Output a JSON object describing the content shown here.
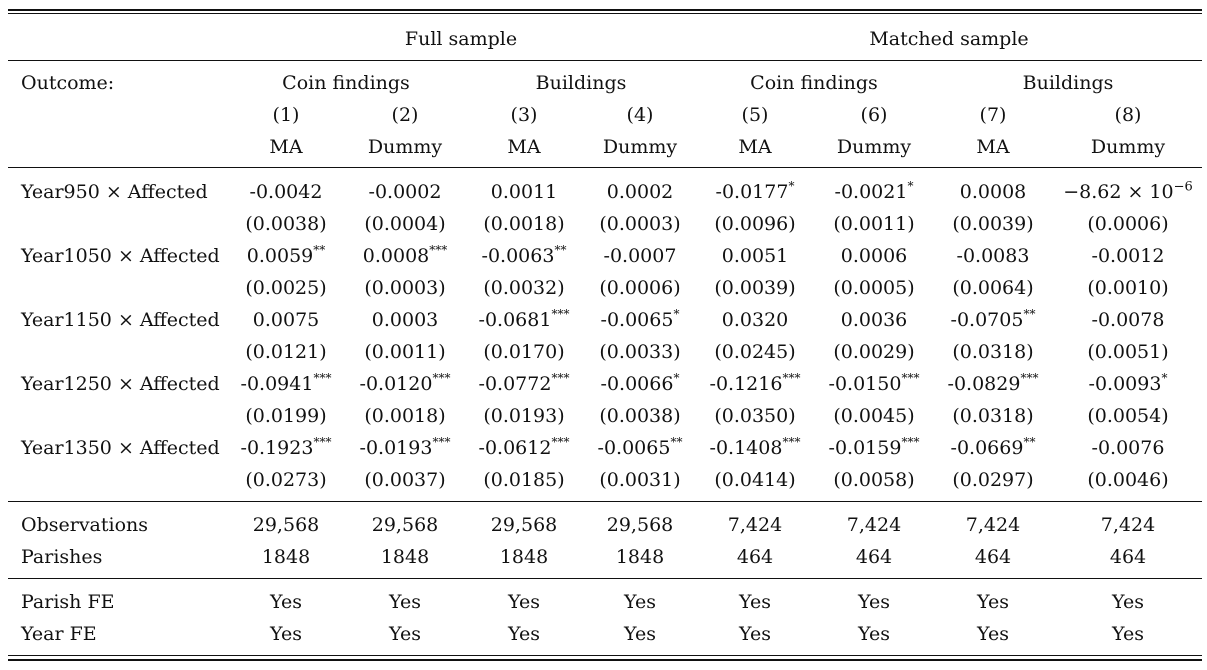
{
  "header": {
    "groups": [
      "Full sample",
      "Matched sample"
    ],
    "outcome_label": "Outcome:",
    "subgroups": [
      "Coin findings",
      "Buildings",
      "Coin findings",
      "Buildings"
    ],
    "col_numbers": [
      "(1)",
      "(2)",
      "(3)",
      "(4)",
      "(5)",
      "(6)",
      "(7)",
      "(8)"
    ],
    "col_types": [
      "MA",
      "Dummy",
      "MA",
      "Dummy",
      "MA",
      "Dummy",
      "MA",
      "Dummy"
    ]
  },
  "rows": [
    {
      "label": "Year950 × Affected",
      "coefs": [
        [
          "-0.0042",
          ""
        ],
        [
          "-0.0002",
          ""
        ],
        [
          "0.0011",
          ""
        ],
        [
          "0.0002",
          ""
        ],
        [
          "-0.0177",
          "*"
        ],
        [
          "-0.0021",
          "*"
        ],
        [
          "0.0008",
          ""
        ],
        [
          "−8.62 × 10",
          ""
        ]
      ],
      "last_exp": "−6",
      "ses": [
        "(0.0038)",
        "(0.0004)",
        "(0.0018)",
        "(0.0003)",
        "(0.0096)",
        "(0.0011)",
        "(0.0039)",
        "(0.0006)"
      ]
    },
    {
      "label": "Year1050 × Affected",
      "coefs": [
        [
          "0.0059",
          "**"
        ],
        [
          "0.0008",
          "***"
        ],
        [
          "-0.0063",
          "**"
        ],
        [
          "-0.0007",
          ""
        ],
        [
          "0.0051",
          ""
        ],
        [
          "0.0006",
          ""
        ],
        [
          "-0.0083",
          ""
        ],
        [
          "-0.0012",
          ""
        ]
      ],
      "ses": [
        "(0.0025)",
        "(0.0003)",
        "(0.0032)",
        "(0.0006)",
        "(0.0039)",
        "(0.0005)",
        "(0.0064)",
        "(0.0010)"
      ]
    },
    {
      "label": "Year1150 × Affected",
      "coefs": [
        [
          "0.0075",
          ""
        ],
        [
          "0.0003",
          ""
        ],
        [
          "-0.0681",
          "***"
        ],
        [
          "-0.0065",
          "*"
        ],
        [
          "0.0320",
          ""
        ],
        [
          "0.0036",
          ""
        ],
        [
          "-0.0705",
          "**"
        ],
        [
          "-0.0078",
          ""
        ]
      ],
      "ses": [
        "(0.0121)",
        "(0.0011)",
        "(0.0170)",
        "(0.0033)",
        "(0.0245)",
        "(0.0029)",
        "(0.0318)",
        "(0.0051)"
      ]
    },
    {
      "label": "Year1250 × Affected",
      "coefs": [
        [
          "-0.0941",
          "***"
        ],
        [
          "-0.0120",
          "***"
        ],
        [
          "-0.0772",
          "***"
        ],
        [
          "-0.0066",
          "*"
        ],
        [
          "-0.1216",
          "***"
        ],
        [
          "-0.0150",
          "***"
        ],
        [
          "-0.0829",
          "***"
        ],
        [
          "-0.0093",
          "*"
        ]
      ],
      "ses": [
        "(0.0199)",
        "(0.0018)",
        "(0.0193)",
        "(0.0038)",
        "(0.0350)",
        "(0.0045)",
        "(0.0318)",
        "(0.0054)"
      ]
    },
    {
      "label": "Year1350 × Affected",
      "coefs": [
        [
          "-0.1923",
          "***"
        ],
        [
          "-0.0193",
          "***"
        ],
        [
          "-0.0612",
          "***"
        ],
        [
          "-0.0065",
          "**"
        ],
        [
          "-0.1408",
          "***"
        ],
        [
          "-0.0159",
          "***"
        ],
        [
          "-0.0669",
          "**"
        ],
        [
          "-0.0076",
          ""
        ]
      ],
      "ses": [
        "(0.0273)",
        "(0.0037)",
        "(0.0185)",
        "(0.0031)",
        "(0.0414)",
        "(0.0058)",
        "(0.0297)",
        "(0.0046)"
      ]
    }
  ],
  "stats": [
    {
      "label": "Observations",
      "values": [
        "29,568",
        "29,568",
        "29,568",
        "29,568",
        "7,424",
        "7,424",
        "7,424",
        "7,424"
      ]
    },
    {
      "label": "Parishes",
      "values": [
        "1848",
        "1848",
        "1848",
        "1848",
        "464",
        "464",
        "464",
        "464"
      ]
    }
  ],
  "fe": [
    {
      "label": "Parish FE",
      "values": [
        "Yes",
        "Yes",
        "Yes",
        "Yes",
        "Yes",
        "Yes",
        "Yes",
        "Yes"
      ]
    },
    {
      "label": "Year FE",
      "values": [
        "Yes",
        "Yes",
        "Yes",
        "Yes",
        "Yes",
        "Yes",
        "Yes",
        "Yes"
      ]
    }
  ]
}
